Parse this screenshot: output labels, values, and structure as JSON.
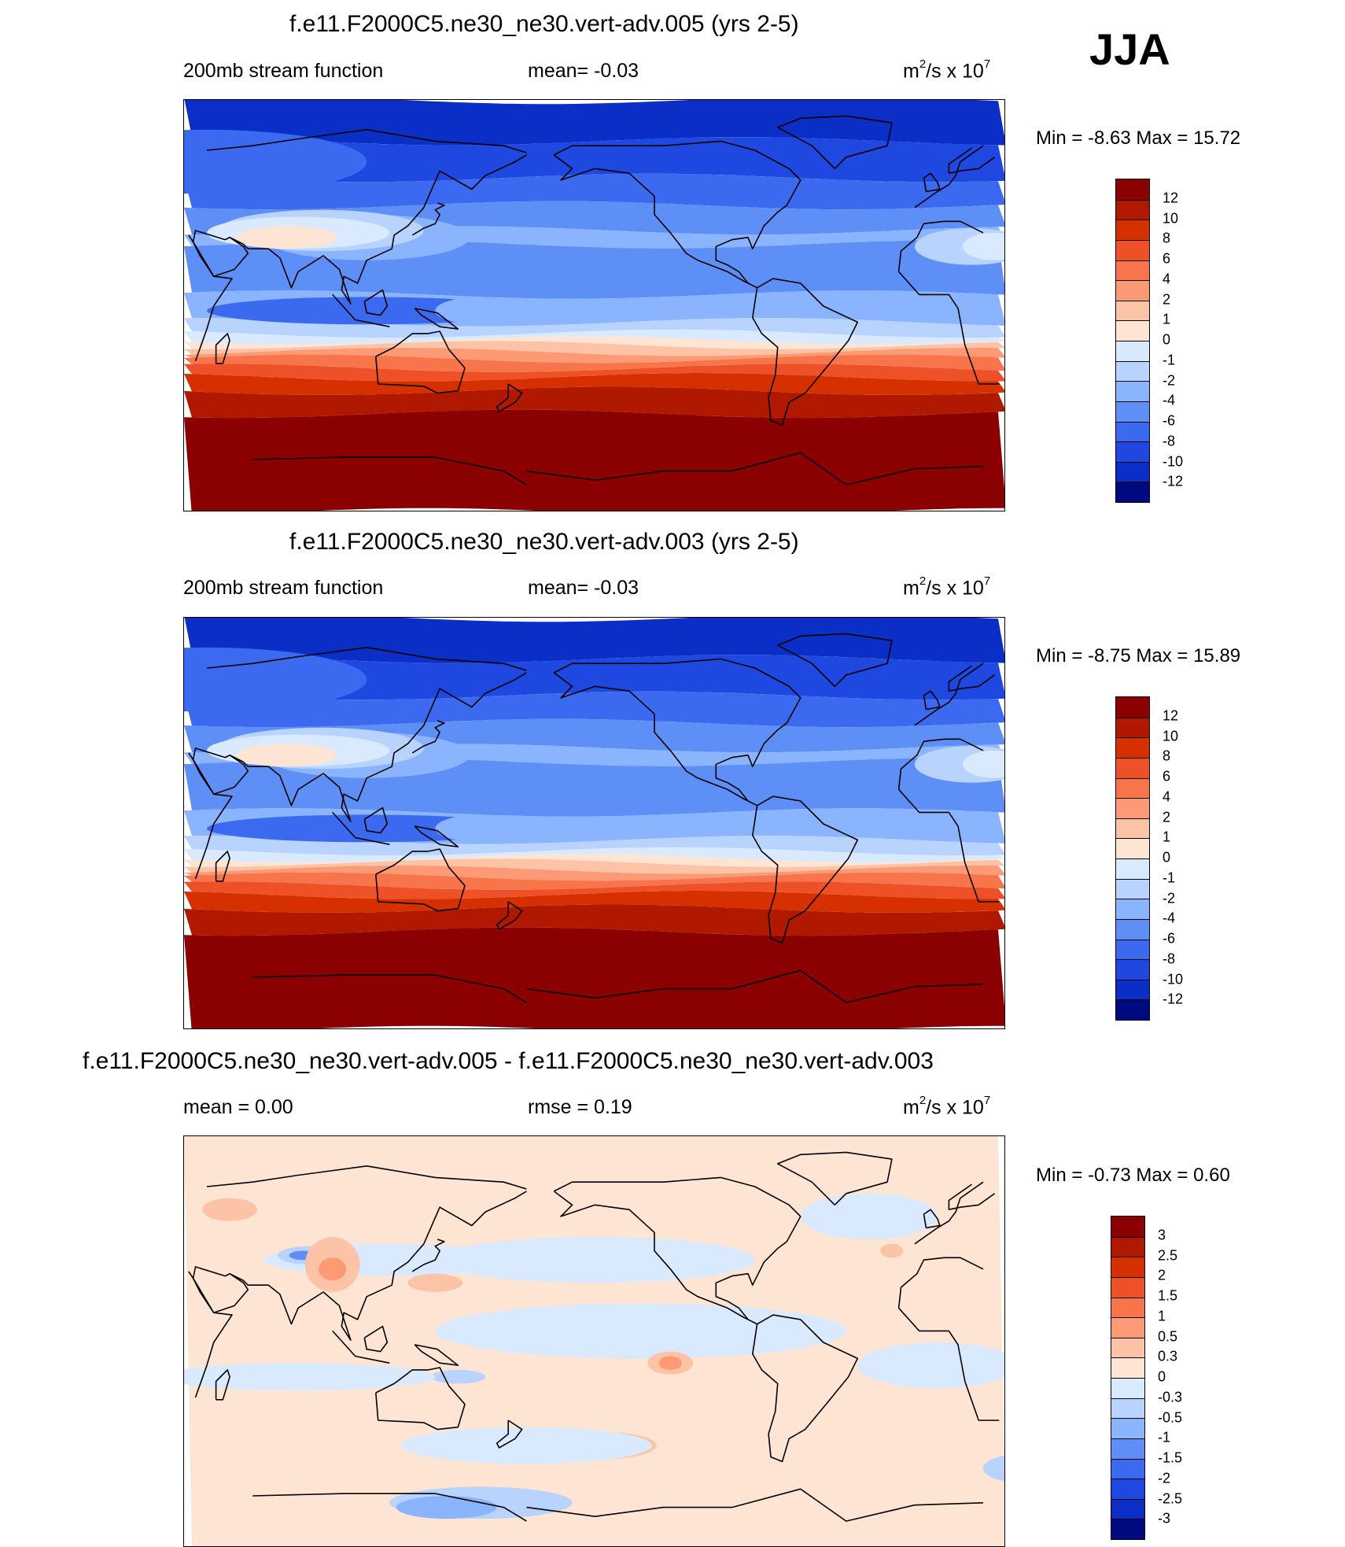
{
  "season": "JJA",
  "palette": {
    "1": "#8b0000",
    "2": "#b01900",
    "3": "#d73000",
    "4": "#ee5028",
    "5": "#f8744a",
    "6": "#fc9a76",
    "7": "#fdc3a6",
    "8": "#fee4d2",
    "9": "#d9e9fe",
    "10": "#b8d3fe",
    "11": "#8ab4fe",
    "12": "#5d8ff7",
    "13": "#3b6af0",
    "14": "#1e48e0",
    "15": "#0b2ec7",
    "16": "#001f9a",
    "17": "#000a80",
    "line": "#000000"
  },
  "chart_data": [
    {
      "type": "contour-map",
      "title": "f.e11.F2000C5.ne30_ne30.vert-adv.005 (yrs 2-5)",
      "left_label": "200mb stream function",
      "center_label": "mean=  -0.03",
      "units_base": "m",
      "units_exp": "2",
      "units_mid": "/s x 10",
      "units_exp2": "7",
      "minmax": "Min =  -8.63 Max =  15.72",
      "field_min": -8.63,
      "field_max": 15.72,
      "mean": -0.03,
      "contour_levels": [
        -12,
        -10,
        -8,
        -6,
        -4,
        -2,
        -1,
        0,
        1,
        2,
        4,
        6,
        8,
        10,
        12
      ],
      "colorbar_labels": [
        "12",
        "10",
        "8",
        "6",
        "4",
        "2",
        "1",
        "0",
        "-1",
        "-2",
        "-4",
        "-6",
        "-8",
        "-10",
        "-12"
      ],
      "colors": [
        "#8b0000",
        "#b01900",
        "#d73000",
        "#ee5028",
        "#f8744a",
        "#fc9a76",
        "#fdc3a6",
        "#fee4d2",
        "#d9e9fe",
        "#b8d3fe",
        "#8ab4fe",
        "#5d8ff7",
        "#3b6af0",
        "#1e48e0",
        "#0b2ec7",
        "#000a80"
      ],
      "lon_range": [
        30,
        390
      ],
      "lat_range": [
        -90,
        90
      ]
    },
    {
      "type": "contour-map",
      "title": "f.e11.F2000C5.ne30_ne30.vert-adv.003 (yrs 2-5)",
      "left_label": "200mb stream function",
      "center_label": "mean=  -0.03",
      "units_base": "m",
      "units_exp": "2",
      "units_mid": "/s x 10",
      "units_exp2": "7",
      "minmax": "Min =  -8.75 Max =  15.89",
      "field_min": -8.75,
      "field_max": 15.89,
      "mean": -0.03,
      "contour_levels": [
        -12,
        -10,
        -8,
        -6,
        -4,
        -2,
        -1,
        0,
        1,
        2,
        4,
        6,
        8,
        10,
        12
      ],
      "colorbar_labels": [
        "12",
        "10",
        "8",
        "6",
        "4",
        "2",
        "1",
        "0",
        "-1",
        "-2",
        "-4",
        "-6",
        "-8",
        "-10",
        "-12"
      ],
      "colors": [
        "#8b0000",
        "#b01900",
        "#d73000",
        "#ee5028",
        "#f8744a",
        "#fc9a76",
        "#fdc3a6",
        "#fee4d2",
        "#d9e9fe",
        "#b8d3fe",
        "#8ab4fe",
        "#5d8ff7",
        "#3b6af0",
        "#1e48e0",
        "#0b2ec7",
        "#000a80"
      ],
      "lon_range": [
        30,
        390
      ],
      "lat_range": [
        -90,
        90
      ]
    },
    {
      "type": "contour-map",
      "title": "f.e11.F2000C5.ne30_ne30.vert-adv.005 - f.e11.F2000C5.ne30_ne30.vert-adv.003",
      "left_label": "mean =   0.00",
      "center_label": "rmse =   0.19",
      "units_base": "m",
      "units_exp": "2",
      "units_mid": "/s x 10",
      "units_exp2": "7",
      "minmax": "Min =  -0.73 Max =   0.60",
      "field_min": -0.73,
      "field_max": 0.6,
      "mean": 0.0,
      "rmse": 0.19,
      "contour_levels": [
        -3,
        -2.5,
        -2,
        -1.5,
        -1,
        -0.5,
        -0.3,
        0,
        0.3,
        0.5,
        1,
        1.5,
        2,
        2.5,
        3
      ],
      "colorbar_labels": [
        "3",
        "2.5",
        "2",
        "1.5",
        "1",
        "0.5",
        "0.3",
        "0",
        "-0.3",
        "-0.5",
        "-1",
        "-1.5",
        "-2",
        "-2.5",
        "-3"
      ],
      "colors": [
        "#8b0000",
        "#b01900",
        "#d73000",
        "#ee5028",
        "#f8744a",
        "#fc9a76",
        "#fdc3a6",
        "#fee4d2",
        "#d9e9fe",
        "#b8d3fe",
        "#8ab4fe",
        "#5d8ff7",
        "#3b6af0",
        "#1e48e0",
        "#0b2ec7",
        "#000a80"
      ],
      "lon_range": [
        30,
        390
      ],
      "lat_range": [
        -90,
        90
      ]
    }
  ]
}
